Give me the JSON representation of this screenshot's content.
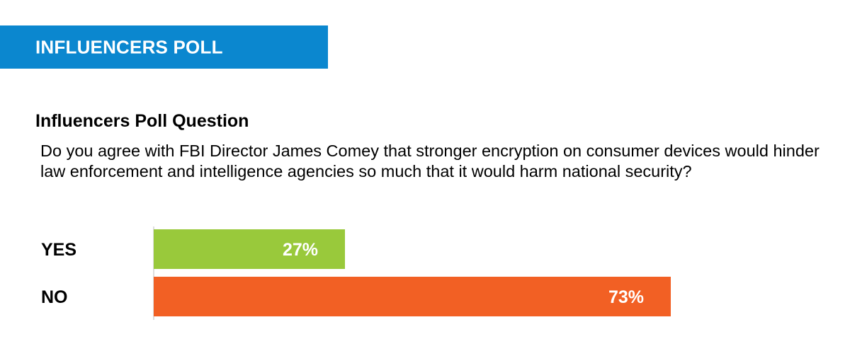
{
  "banner": {
    "title": "INFLUENCERS POLL",
    "color": "#0b87cf"
  },
  "question": {
    "heading": "Influencers Poll Question",
    "text": "Do you agree with FBI Director James Comey that stronger encryption on consumer devices would hinder law enforcement and intelligence agencies so much that it would harm national security?"
  },
  "chart_data": {
    "type": "bar",
    "orientation": "horizontal",
    "categories": [
      "YES",
      "NO"
    ],
    "values": [
      27,
      73
    ],
    "value_labels": [
      "27%",
      "73%"
    ],
    "colors": [
      "#99c93b",
      "#f26024"
    ],
    "xlim": [
      0,
      100
    ],
    "grid": false,
    "legend": "none"
  }
}
